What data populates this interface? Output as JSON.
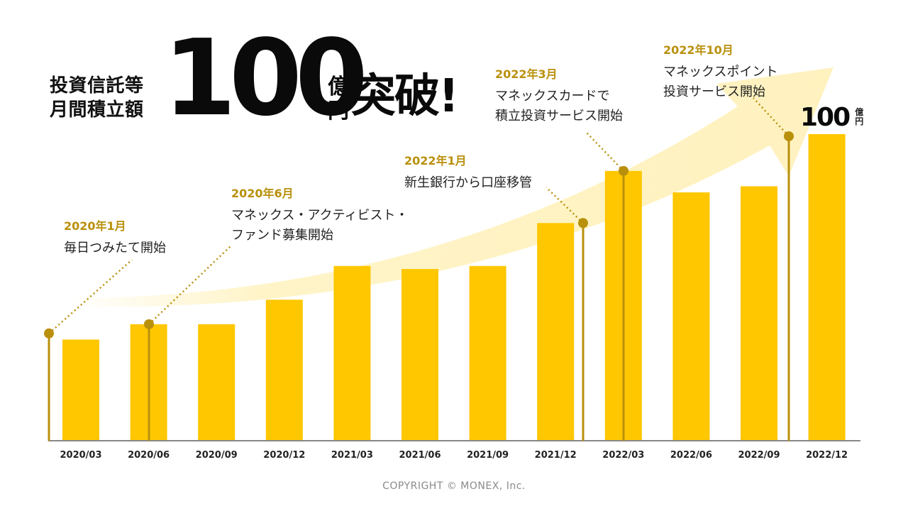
{
  "headline": {
    "left_line1": "投資信託等",
    "left_line2": "月間積立額",
    "number": "100",
    "unit_line1": "億",
    "unit_line2": "円",
    "tail": "突破!"
  },
  "chart_data": {
    "type": "bar",
    "categories": [
      "2020/03",
      "2020/06",
      "2020/09",
      "2020/12",
      "2021/03",
      "2021/06",
      "2021/09",
      "2021/12",
      "2022/03",
      "2022/06",
      "2022/09",
      "2022/12"
    ],
    "values": [
      33,
      38,
      38,
      46,
      57,
      56,
      57,
      71,
      88,
      81,
      83,
      100
    ],
    "ylim": [
      0,
      100
    ],
    "grid": false,
    "top_label": {
      "number": "100",
      "unit_line1": "億",
      "unit_line2": "円"
    },
    "milestones": [
      {
        "date": "2020年1月",
        "lines": [
          "毎日つみたて開始"
        ],
        "bar_value": 35,
        "position": "before-2020/03"
      },
      {
        "date": "2020年6月",
        "lines": [
          "マネックス・アクティビスト・",
          "ファンド募集開始"
        ],
        "bar_value": 38,
        "position": "2020/06"
      },
      {
        "date": "2022年1月",
        "lines": [
          "新生銀行から口座移管"
        ],
        "bar_value": 71,
        "position": "after-2021/12"
      },
      {
        "date": "2022年3月",
        "lines": [
          "マネックスカードで",
          "積立投資サービス開始"
        ],
        "bar_value": 88,
        "position": "2022/03"
      },
      {
        "date": "2022年10月",
        "lines": [
          "マネックスポイント",
          "投資サービス開始"
        ],
        "bar_value": 100,
        "position": "after-2022/09"
      }
    ]
  },
  "colors": {
    "bar": "#ffc700",
    "arrow": "#fff2bf",
    "milestone": "#b9900c",
    "axis": "#888888"
  },
  "footer": {
    "copyright": "COPYRIGHT © MONEX, Inc."
  }
}
